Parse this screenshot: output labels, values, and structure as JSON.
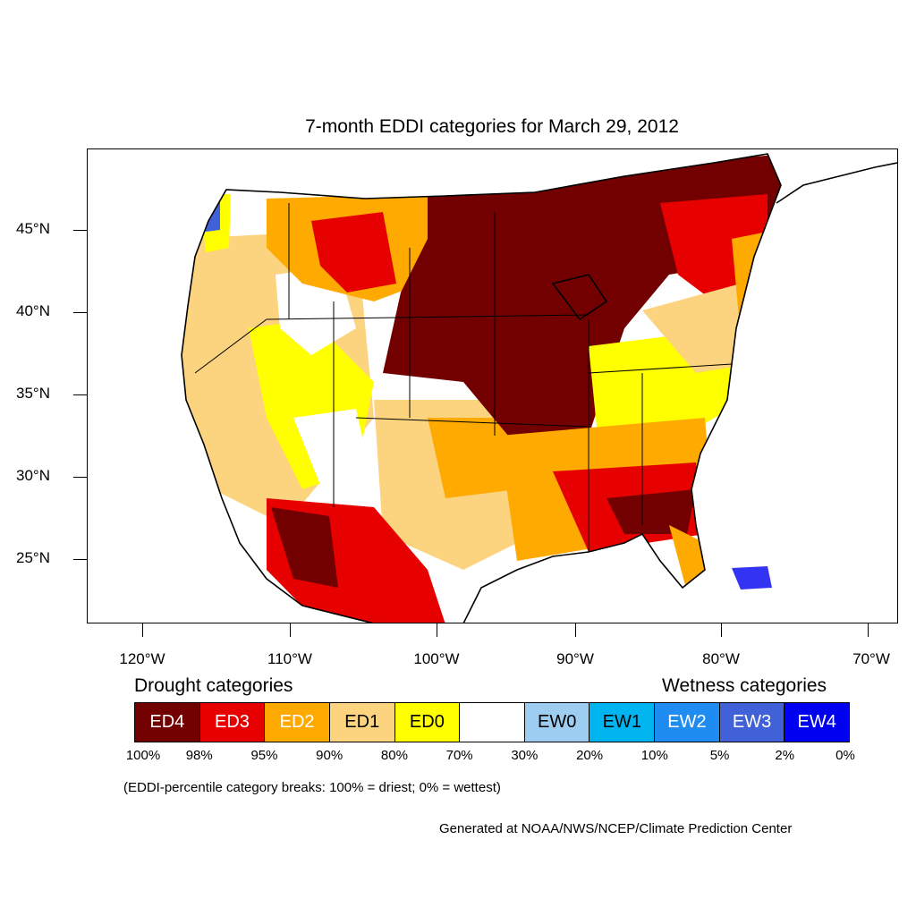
{
  "title": "7-month EDDI categories for March 29, 2012",
  "lat_labels": [
    "45°N",
    "40°N",
    "35°N",
    "30°N",
    "25°N"
  ],
  "lon_labels": [
    "120°W",
    "110°W",
    "100°W",
    "90°W",
    "80°W",
    "70°W"
  ],
  "legend": {
    "drought_heading": "Drought categories",
    "wetness_heading": "Wetness categories",
    "categories": [
      {
        "label": "ED4",
        "color": "#730000",
        "text_color": "#ffffff"
      },
      {
        "label": "ED3",
        "color": "#e60000",
        "text_color": "#ffffff"
      },
      {
        "label": "ED2",
        "color": "#ffaa00",
        "text_color": "#ffffff"
      },
      {
        "label": "ED1",
        "color": "#fcd37f",
        "text_color": "#000000"
      },
      {
        "label": "ED0",
        "color": "#ffff00",
        "text_color": "#000000"
      },
      {
        "label": "",
        "color": "#ffffff",
        "text_color": "#000000"
      },
      {
        "label": "EW0",
        "color": "#9dcdf0",
        "text_color": "#000000"
      },
      {
        "label": "EW1",
        "color": "#00b4f0",
        "text_color": "#000000"
      },
      {
        "label": "EW2",
        "color": "#1e8cf0",
        "text_color": "#ffffff"
      },
      {
        "label": "EW3",
        "color": "#4161d8",
        "text_color": "#ffffff"
      },
      {
        "label": "EW4",
        "color": "#0000f0",
        "text_color": "#ffffff"
      }
    ],
    "percentiles": [
      "100%",
      "98%",
      "95%",
      "90%",
      "80%",
      "70%",
      "30%",
      "20%",
      "10%",
      "5%",
      "2%",
      "0%"
    ]
  },
  "breaks_note": "(EDDI-percentile category breaks: 100% = driest; 0% = wettest)",
  "credit": "Generated at NOAA/NWS/NCEP/Climate Prediction Center"
}
